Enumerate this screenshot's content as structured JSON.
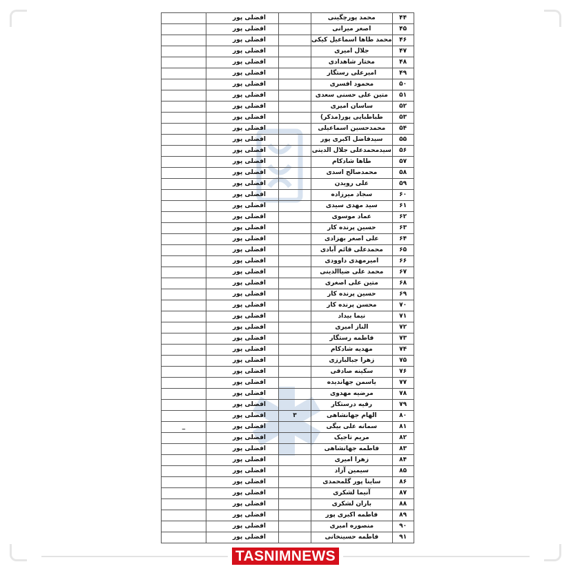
{
  "document": {
    "rows": [
      {
        "num": "۴۴",
        "name": "محمد پورچگینی",
        "family": "افضلی پور",
        "col3": "",
        "col5": ""
      },
      {
        "num": "۴۵",
        "name": "اصغر میرانی",
        "family": "افضلی پور",
        "col3": "",
        "col5": ""
      },
      {
        "num": "۴۶",
        "name": "محمد طاها اسماعیل کیکی",
        "family": "افضلی پور",
        "col3": "",
        "col5": ""
      },
      {
        "num": "۴۷",
        "name": "جلال امیری",
        "family": "افضلی پور",
        "col3": "",
        "col5": ""
      },
      {
        "num": "۴۸",
        "name": "مختار شاهدادی",
        "family": "افضلی پور",
        "col3": "",
        "col5": ""
      },
      {
        "num": "۴۹",
        "name": "امیرعلی رستگار",
        "family": "افضلی پور",
        "col3": "",
        "col5": ""
      },
      {
        "num": "۵۰",
        "name": "محمود افسری",
        "family": "افضلی پور",
        "col3": "",
        "col5": ""
      },
      {
        "num": "۵۱",
        "name": "متین علی حسنی سعدی",
        "family": "افضلی پور",
        "col3": "",
        "col5": ""
      },
      {
        "num": "۵۲",
        "name": "ساسان امیری",
        "family": "افضلی پور",
        "col3": "",
        "col5": ""
      },
      {
        "num": "۵۳",
        "name": "طباطبایی پور(مذکر)",
        "family": "افضلی پور",
        "col3": "",
        "col5": ""
      },
      {
        "num": "۵۴",
        "name": "محمدحسین اسماعیلی",
        "family": "افضلی پور",
        "col3": "",
        "col5": ""
      },
      {
        "num": "۵۵",
        "name": "سیدفاضل اکبری پور",
        "family": "افضلی پور",
        "col3": "",
        "col5": ""
      },
      {
        "num": "۵۶",
        "name": "سیدمحمدعلی جلال الدینی",
        "family": "افضلی پور",
        "col3": "",
        "col5": ""
      },
      {
        "num": "۵۷",
        "name": "طاها شادکام",
        "family": "افضلی پور",
        "col3": "",
        "col5": ""
      },
      {
        "num": "۵۸",
        "name": "محمدصالح اسدی",
        "family": "افضلی پور",
        "col3": "",
        "col5": ""
      },
      {
        "num": "۵۹",
        "name": "علی رویدن",
        "family": "افضلی پور",
        "col3": "",
        "col5": ""
      },
      {
        "num": "۶۰",
        "name": "سجاد میرزاده",
        "family": "افضلی پور",
        "col3": "",
        "col5": ""
      },
      {
        "num": "۶۱",
        "name": "سید مهدی سیدی",
        "family": "افضلی پور",
        "col3": "",
        "col5": ""
      },
      {
        "num": "۶۲",
        "name": "عماد موسوی",
        "family": "افضلی پور",
        "col3": "",
        "col5": ""
      },
      {
        "num": "۶۳",
        "name": "حسین پرنده کار",
        "family": "افضلی پور",
        "col3": "",
        "col5": ""
      },
      {
        "num": "۶۴",
        "name": "علی اصغر بهزادی",
        "family": "افضلی پور",
        "col3": "",
        "col5": ""
      },
      {
        "num": "۶۵",
        "name": "محمدعلی قائم آبادی",
        "family": "افضلی پور",
        "col3": "",
        "col5": ""
      },
      {
        "num": "۶۶",
        "name": "امیرمهدی داوودی",
        "family": "افضلی پور",
        "col3": "",
        "col5": ""
      },
      {
        "num": "۶۷",
        "name": "محمد علی ضیاالدینی",
        "family": "افضلی پور",
        "col3": "",
        "col5": ""
      },
      {
        "num": "۶۸",
        "name": "متین علی اصغری",
        "family": "افضلی پور",
        "col3": "",
        "col5": ""
      },
      {
        "num": "۶۹",
        "name": "حسین پرنده کار",
        "family": "افضلی پور",
        "col3": "",
        "col5": ""
      },
      {
        "num": "۷۰",
        "name": "محسن پرنده کار",
        "family": "افضلی پور",
        "col3": "",
        "col5": ""
      },
      {
        "num": "۷۱",
        "name": "نیما بیداد",
        "family": "افضلی پور",
        "col3": "",
        "col5": ""
      },
      {
        "num": "۷۲",
        "name": "الناز امیری",
        "family": "افضلی پور",
        "col3": "",
        "col5": ""
      },
      {
        "num": "۷۳",
        "name": "فاطمه رستگار",
        "family": "افضلی پور",
        "col3": "",
        "col5": ""
      },
      {
        "num": "۷۴",
        "name": "مهدیه شادکام",
        "family": "افضلی پور",
        "col3": "",
        "col5": ""
      },
      {
        "num": "۷۵",
        "name": "زهرا جبالبارزی",
        "family": "افضلی پور",
        "col3": "",
        "col5": ""
      },
      {
        "num": "۷۶",
        "name": "سکینه صادقی",
        "family": "افضلی پور",
        "col3": "",
        "col5": ""
      },
      {
        "num": "۷۷",
        "name": "یاسمن جهاندیده",
        "family": "افضلی پور",
        "col3": "",
        "col5": ""
      },
      {
        "num": "۷۸",
        "name": "مرضیه مهدوی",
        "family": "افضلی پور",
        "col3": "",
        "col5": ""
      },
      {
        "num": "۷۹",
        "name": "رقیه درستکار",
        "family": "افضلی پور",
        "col3": "",
        "col5": ""
      },
      {
        "num": "۸۰",
        "name": "الهام جهانشاهی",
        "family": "افضلی پور",
        "col3": "۳",
        "col5": ""
      },
      {
        "num": "۸۱",
        "name": "سمانه علی بیگی",
        "family": "افضلی پور",
        "col3": "",
        "col5": "_"
      },
      {
        "num": "۸۲",
        "name": "مریم تاجیک",
        "family": "افضلی پور",
        "col3": "",
        "col5": ""
      },
      {
        "num": "۸۳",
        "name": "فاطمه جهانشاهی",
        "family": "افضلی پور",
        "col3": "",
        "col5": ""
      },
      {
        "num": "۸۴",
        "name": "زهرا امیری",
        "family": "افضلی پور",
        "col3": "",
        "col5": ""
      },
      {
        "num": "۸۵",
        "name": "سیمین آزاد",
        "family": "افضلی پور",
        "col3": "",
        "col5": ""
      },
      {
        "num": "۸۶",
        "name": "ساینا پور گلمحمدی",
        "family": "افضلی پور",
        "col3": "",
        "col5": ""
      },
      {
        "num": "۸۷",
        "name": "آنیما لشکری",
        "family": "افضلی پور",
        "col3": "",
        "col5": ""
      },
      {
        "num": "۸۸",
        "name": "باران لشکری",
        "family": "افضلی پور",
        "col3": "",
        "col5": ""
      },
      {
        "num": "۸۹",
        "name": "فاطمه اکبری پور",
        "family": "افضلی پور",
        "col3": "",
        "col5": ""
      },
      {
        "num": "۹۰",
        "name": "منصوره امیری",
        "family": "افضلی پور",
        "col3": "",
        "col5": ""
      },
      {
        "num": "۹۱",
        "name": "فاطمه حسینخانی",
        "family": "افضلی پور",
        "col3": "",
        "col5": ""
      }
    ]
  },
  "footer": {
    "logo_text": "TASNIMNEWS",
    "logo_color": "#d5101b"
  }
}
